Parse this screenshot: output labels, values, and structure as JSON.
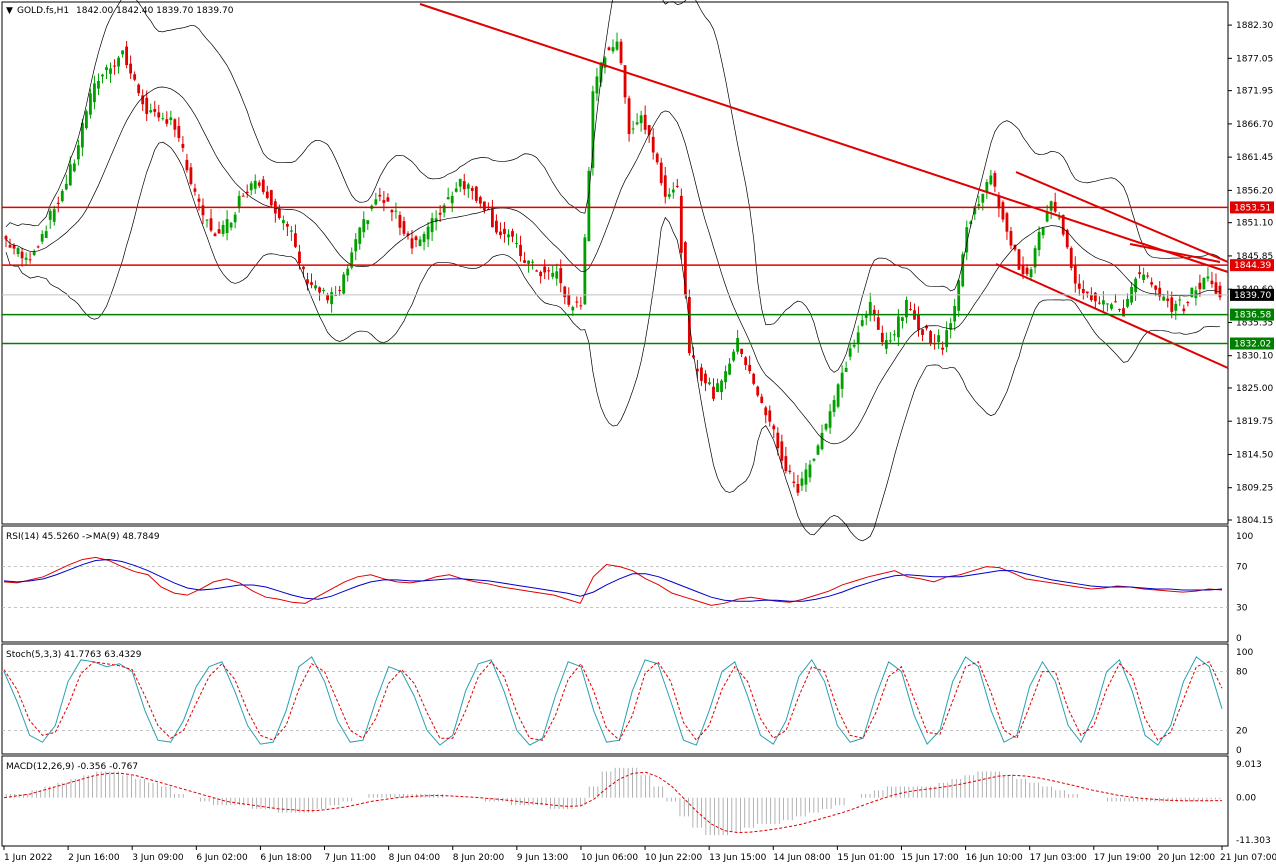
{
  "header": {
    "symbol": "GOLD.fs,H1",
    "ohlc": "1842.00 1842.40 1839.70 1839.70"
  },
  "colors": {
    "bull": "#00a000",
    "bear": "#e00000",
    "level_red": "#e00000",
    "level_green": "#008000",
    "price_tag": "#000000",
    "bands": "#000000",
    "rsi_line": "#e00000",
    "rsi_ma": "#0000cc",
    "stoch_main": "#2aa0b0",
    "stoch_signal": "#e00000",
    "macd_hist": "#a0a0a0",
    "macd_signal": "#e00000"
  },
  "chart_data": [
    {
      "type": "candlestick",
      "title": "GOLD.fs,H1",
      "ylim": [
        1804.15,
        1885.0
      ],
      "y_ticks": [
        "1882.30",
        "1877.05",
        "1871.95",
        "1866.70",
        "1861.45",
        "1856.20",
        "1851.10",
        "1845.85",
        "1840.60",
        "1835.35",
        "1830.10",
        "1825.00",
        "1819.75",
        "1814.50",
        "1809.25",
        "1804.15"
      ],
      "x_ticks": [
        "1 Jun 2022",
        "2 Jun 16:00",
        "3 Jun 09:00",
        "6 Jun 02:00",
        "6 Jun 18:00",
        "7 Jun 11:00",
        "8 Jun 04:00",
        "8 Jun 20:00",
        "9 Jun 13:00",
        "10 Jun 06:00",
        "10 Jun 22:00",
        "13 Jun 15:00",
        "14 Jun 08:00",
        "15 Jun 01:00",
        "15 Jun 17:00",
        "16 Jun 10:00",
        "17 Jun 03:00",
        "17 Jun 19:00",
        "20 Jun 12:00",
        "21 Jun 07:00"
      ],
      "price_path": [
        1849,
        1847,
        1845,
        1848,
        1852,
        1856,
        1861,
        1869,
        1874,
        1876,
        1878,
        1873,
        1869,
        1867,
        1868,
        1862,
        1855,
        1851,
        1849,
        1852,
        1856,
        1858,
        1856,
        1852,
        1849,
        1843,
        1841,
        1839,
        1840,
        1846,
        1851,
        1855,
        1854,
        1851,
        1848,
        1849,
        1852,
        1855,
        1858,
        1856,
        1854,
        1850,
        1849,
        1846,
        1844,
        1843,
        1843,
        1838,
        1838,
        1871,
        1878,
        1880,
        1866,
        1868,
        1863,
        1856,
        1856,
        1830,
        1827,
        1824,
        1828,
        1832,
        1828,
        1822,
        1818,
        1812,
        1809,
        1813,
        1818,
        1823,
        1829,
        1834,
        1838,
        1832,
        1834,
        1838,
        1835,
        1833,
        1832,
        1838,
        1850,
        1855,
        1858,
        1852,
        1846,
        1842,
        1849,
        1854,
        1850,
        1842,
        1840,
        1839,
        1838,
        1837,
        1843,
        1842,
        1839,
        1838,
        1838,
        1841,
        1842,
        1840
      ],
      "levels": [
        {
          "label": "1853.51",
          "value": 1853.51,
          "color": "red"
        },
        {
          "label": "1844.39",
          "value": 1844.39,
          "color": "red"
        },
        {
          "label": "1836.58",
          "value": 1836.58,
          "color": "green"
        },
        {
          "label": "1832.02",
          "value": 1832.02,
          "color": "green"
        }
      ],
      "last_price": "1839.70"
    },
    {
      "type": "line",
      "title": "RSI(14) 45.5260 ->MA(9) 48.7849",
      "ylim": [
        0,
        100
      ],
      "y_ticks": [
        "100",
        "70",
        "30",
        "0"
      ],
      "levels": [
        70,
        30
      ],
      "series": [
        {
          "name": "RSI(14)",
          "values": [
            55,
            54,
            57,
            60,
            66,
            72,
            77,
            79,
            76,
            70,
            65,
            62,
            50,
            44,
            42,
            48,
            55,
            58,
            54,
            46,
            40,
            38,
            35,
            34,
            41,
            48,
            55,
            60,
            62,
            58,
            55,
            54,
            56,
            60,
            62,
            58,
            55,
            53,
            50,
            48,
            46,
            44,
            42,
            38,
            34,
            60,
            72,
            70,
            66,
            58,
            52,
            44,
            40,
            36,
            32,
            34,
            38,
            40,
            38,
            36,
            35,
            38,
            42,
            46,
            52,
            56,
            60,
            63,
            66,
            60,
            58,
            55,
            60,
            62,
            66,
            70,
            69,
            64,
            58,
            56,
            54,
            52,
            50,
            48,
            49,
            51,
            50,
            48,
            47,
            46,
            45,
            46,
            48,
            47
          ]
        },
        {
          "name": "MA(9)",
          "values": [
            56,
            55,
            56,
            58,
            62,
            67,
            72,
            76,
            77,
            75,
            71,
            66,
            60,
            54,
            49,
            47,
            48,
            50,
            52,
            52,
            50,
            46,
            42,
            39,
            38,
            41,
            46,
            51,
            55,
            57,
            57,
            56,
            56,
            57,
            58,
            58,
            57,
            56,
            54,
            52,
            50,
            48,
            46,
            44,
            41,
            45,
            52,
            58,
            63,
            63,
            60,
            55,
            50,
            45,
            40,
            37,
            36,
            36,
            37,
            37,
            36,
            36,
            38,
            41,
            45,
            50,
            54,
            58,
            61,
            62,
            61,
            60,
            60,
            60,
            62,
            64,
            66,
            66,
            63,
            60,
            57,
            55,
            53,
            51,
            50,
            50,
            50,
            49,
            48,
            48,
            47,
            47,
            47,
            48
          ]
        }
      ]
    },
    {
      "type": "line",
      "title": "Stoch(5,3,3) 41.7763 63.4329",
      "ylim": [
        0,
        100
      ],
      "y_ticks": [
        "100",
        "80",
        "20",
        "0"
      ],
      "levels": [
        80,
        20
      ],
      "series": [
        {
          "name": "Stoch main",
          "values": [
            80,
            50,
            15,
            8,
            25,
            70,
            92,
            90,
            85,
            88,
            80,
            40,
            10,
            8,
            30,
            65,
            85,
            90,
            60,
            25,
            6,
            8,
            40,
            85,
            95,
            70,
            30,
            8,
            10,
            50,
            85,
            80,
            55,
            20,
            5,
            15,
            60,
            88,
            92,
            60,
            20,
            5,
            12,
            55,
            90,
            85,
            40,
            8,
            10,
            60,
            92,
            88,
            50,
            10,
            5,
            40,
            80,
            90,
            55,
            15,
            6,
            30,
            75,
            92,
            70,
            25,
            8,
            12,
            55,
            90,
            80,
            35,
            6,
            20,
            70,
            95,
            85,
            40,
            8,
            15,
            65,
            90,
            70,
            25,
            8,
            35,
            80,
            92,
            60,
            15,
            5,
            25,
            70,
            95,
            85,
            42
          ]
        },
        {
          "name": "Stoch signal",
          "values": [
            82,
            62,
            30,
            15,
            18,
            45,
            78,
            90,
            88,
            86,
            82,
            55,
            25,
            12,
            20,
            48,
            75,
            88,
            72,
            40,
            15,
            10,
            25,
            62,
            88,
            80,
            50,
            20,
            12,
            32,
            68,
            82,
            68,
            38,
            12,
            12,
            40,
            75,
            90,
            75,
            38,
            12,
            10,
            35,
            72,
            88,
            60,
            22,
            10,
            35,
            78,
            90,
            70,
            28,
            10,
            25,
            62,
            85,
            70,
            32,
            12,
            20,
            55,
            85,
            80,
            42,
            15,
            12,
            38,
            75,
            85,
            52,
            18,
            16,
            50,
            85,
            90,
            58,
            20,
            12,
            45,
            80,
            80,
            42,
            15,
            25,
            62,
            88,
            75,
            32,
            10,
            18,
            52,
            85,
            90,
            63
          ]
        }
      ]
    },
    {
      "type": "bar",
      "title": "MACD(12,26,9) -0.356 -0.767",
      "ylim": [
        -11.303,
        9.013
      ],
      "y_ticks": [
        "9.013",
        "0.00",
        "-11.303"
      ],
      "series": [
        {
          "name": "MACD",
          "values": [
            1,
            1,
            2,
            3,
            4,
            5,
            6,
            7,
            7,
            6,
            5,
            4,
            3,
            1,
            0,
            -1,
            -2,
            -2,
            -2,
            -3,
            -3,
            -4,
            -4,
            -4,
            -3,
            -2,
            -1,
            0,
            1,
            1,
            1,
            1,
            1,
            1,
            0,
            0,
            0,
            -1,
            -1,
            -2,
            -2,
            -2,
            -3,
            -3,
            -2,
            3,
            7,
            8,
            8,
            6,
            3,
            -1,
            -5,
            -8,
            -10,
            -10,
            -9,
            -8,
            -7,
            -7,
            -6,
            -5,
            -4,
            -3,
            -2,
            0,
            1,
            2,
            3,
            3,
            3,
            3,
            4,
            5,
            6,
            7,
            7,
            6,
            5,
            4,
            3,
            2,
            1,
            0,
            0,
            -1,
            -1,
            -1,
            -1,
            -1,
            -1,
            -1,
            -1,
            -0.4
          ]
        },
        {
          "name": "Signal",
          "values": [
            0,
            0.5,
            1,
            2,
            3,
            4,
            5,
            6,
            6.5,
            6.5,
            6,
            5,
            4,
            3,
            2,
            1,
            0,
            -1,
            -1.5,
            -2,
            -2.5,
            -3,
            -3.2,
            -3.5,
            -3.4,
            -3,
            -2.5,
            -1.8,
            -1,
            -0.5,
            0,
            0.3,
            0.5,
            0.6,
            0.5,
            0.3,
            0.1,
            -0.2,
            -0.5,
            -0.9,
            -1.3,
            -1.6,
            -2,
            -2.3,
            -2.2,
            -0.5,
            2.5,
            5,
            6.5,
            6.8,
            5.5,
            3,
            -0.5,
            -4,
            -7,
            -8.8,
            -9.3,
            -9.2,
            -8.8,
            -8.3,
            -7.7,
            -7,
            -6,
            -5,
            -4,
            -2.8,
            -1.5,
            -0.3,
            0.8,
            1.6,
            2.1,
            2.5,
            3,
            3.6,
            4.3,
            5.1,
            5.8,
            6,
            5.8,
            5.3,
            4.6,
            3.8,
            3,
            2.1,
            1.4,
            0.7,
            0.2,
            -0.2,
            -0.5,
            -0.7,
            -0.8,
            -0.8,
            -0.8,
            -0.77
          ]
        }
      ]
    }
  ]
}
